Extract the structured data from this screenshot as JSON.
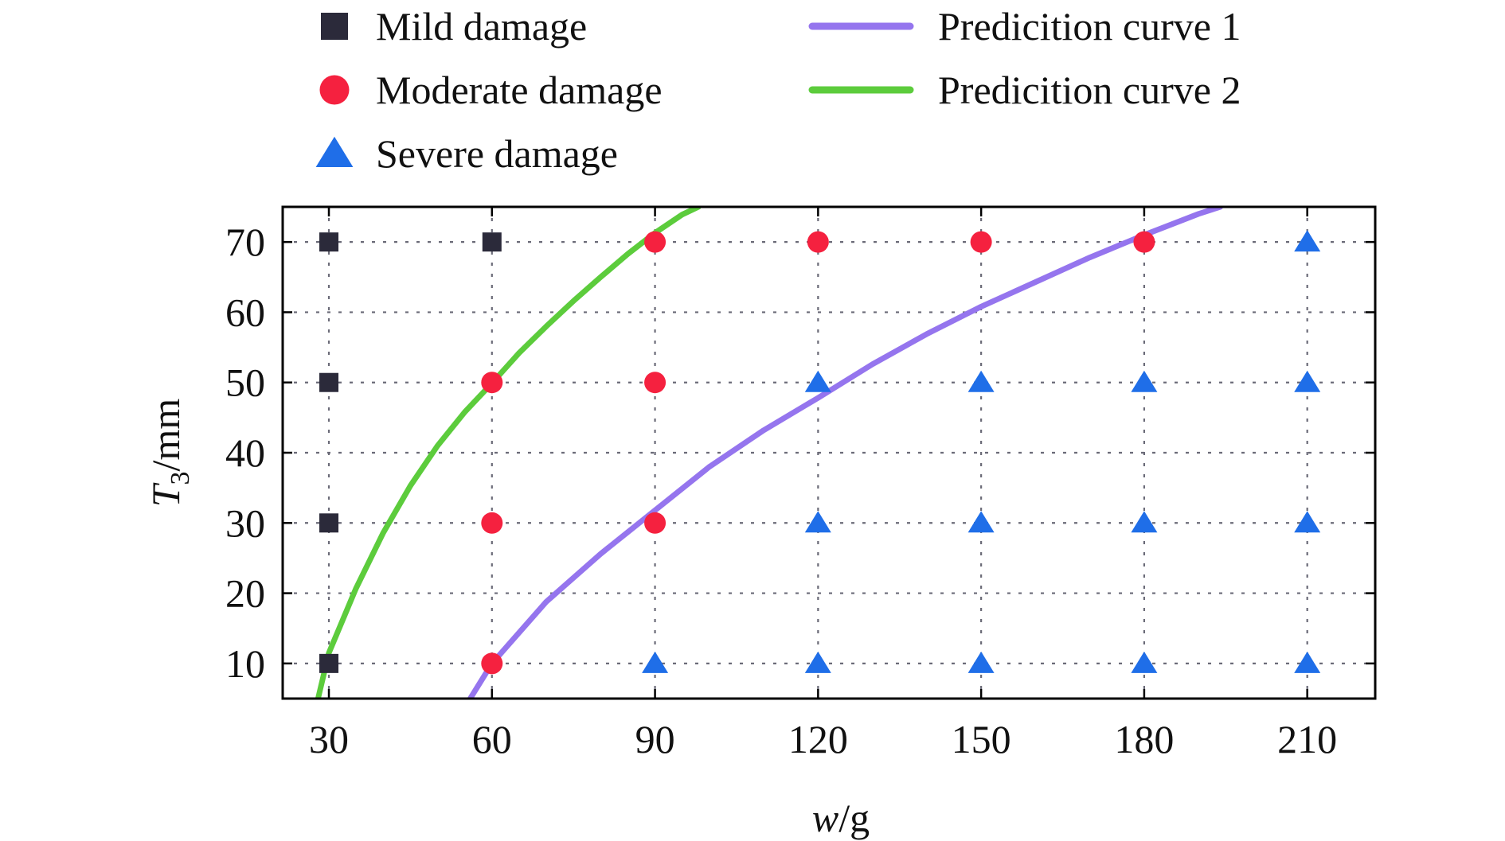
{
  "chart_data": {
    "type": "scatter",
    "title": "",
    "xlabel_italic": "w",
    "xlabel_unit": "/g",
    "ylabel_italic": "T",
    "ylabel_sub": "3",
    "ylabel_unit": "/mm",
    "xlim": [
      21.5,
      222.5
    ],
    "ylim": [
      5,
      75
    ],
    "xticks": [
      30,
      60,
      90,
      120,
      150,
      180,
      210
    ],
    "yticks": [
      10,
      20,
      30,
      40,
      50,
      60,
      70
    ],
    "grid": true,
    "legend_position": "top",
    "series": [
      {
        "name": "Mild damage",
        "marker": "square",
        "color": "#2b2a3a",
        "points": [
          [
            30,
            70
          ],
          [
            60,
            70
          ],
          [
            30,
            50
          ],
          [
            30,
            30
          ],
          [
            30,
            10
          ]
        ]
      },
      {
        "name": "Moderate damage",
        "marker": "circle",
        "color": "#f5213f",
        "points": [
          [
            90,
            70
          ],
          [
            120,
            70
          ],
          [
            150,
            70
          ],
          [
            180,
            70
          ],
          [
            60,
            50
          ],
          [
            90,
            50
          ],
          [
            60,
            30
          ],
          [
            90,
            30
          ],
          [
            60,
            10
          ]
        ]
      },
      {
        "name": "Severe damage",
        "marker": "triangle",
        "color": "#1f6ee8",
        "points": [
          [
            210,
            70
          ],
          [
            120,
            50
          ],
          [
            150,
            50
          ],
          [
            180,
            50
          ],
          [
            210,
            50
          ],
          [
            120,
            30
          ],
          [
            150,
            30
          ],
          [
            180,
            30
          ],
          [
            210,
            30
          ],
          [
            90,
            10
          ],
          [
            120,
            10
          ],
          [
            150,
            10
          ],
          [
            180,
            10
          ],
          [
            210,
            10
          ]
        ]
      }
    ],
    "curves": [
      {
        "name": "Predicition curve 1",
        "color": "#9575ee",
        "x": [
          56,
          60,
          70,
          80,
          90,
          100,
          110,
          120,
          130,
          140,
          150,
          160,
          170,
          180,
          190,
          194
        ],
        "y": [
          5,
          10,
          18.8,
          25.6,
          31.8,
          38,
          43.2,
          47.8,
          52.6,
          56.9,
          60.8,
          64.3,
          67.8,
          71,
          74,
          75
        ]
      },
      {
        "name": "Predicition curve 2",
        "color": "#5ccc3c",
        "x": [
          28,
          30,
          35,
          40,
          45,
          50,
          55,
          60,
          65,
          70,
          75,
          80,
          85,
          90,
          95,
          98
        ],
        "y": [
          5,
          11.5,
          20.7,
          28.6,
          35.3,
          41,
          45.8,
          49.9,
          54.2,
          58,
          61.6,
          65,
          68.3,
          71.3,
          73.9,
          75
        ]
      }
    ]
  }
}
